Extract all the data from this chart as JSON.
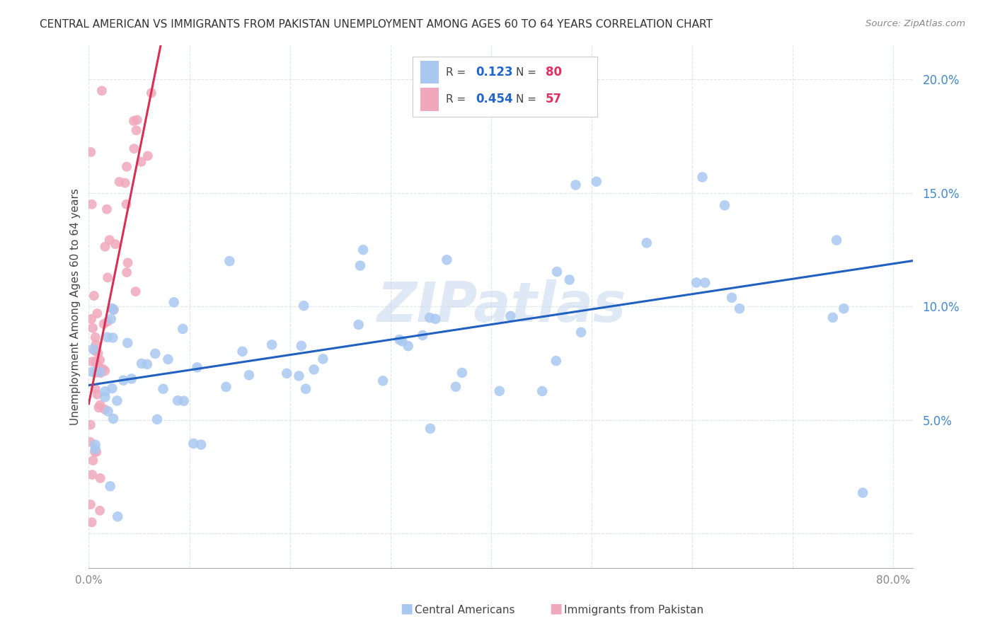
{
  "title": "CENTRAL AMERICAN VS IMMIGRANTS FROM PAKISTAN UNEMPLOYMENT AMONG AGES 60 TO 64 YEARS CORRELATION CHART",
  "source": "Source: ZipAtlas.com",
  "ylabel": "Unemployment Among Ages 60 to 64 years",
  "ytick_vals": [
    0.0,
    0.05,
    0.1,
    0.15,
    0.2
  ],
  "ytick_labels": [
    "",
    "5.0%",
    "10.0%",
    "15.0%",
    "20.0%"
  ],
  "xlim": [
    0.0,
    0.82
  ],
  "ylim": [
    -0.015,
    0.215
  ],
  "legend_blue_r": "0.123",
  "legend_blue_n": "80",
  "legend_pink_r": "0.454",
  "legend_pink_n": "57",
  "blue_color": "#a8c8f0",
  "pink_color": "#f0a8bc",
  "blue_line_color": "#2060c0",
  "pink_line_color": "#d83055",
  "pink_dash_color": "#c8a0b0",
  "watermark": "ZIPatlas",
  "grid_color": "#dde5f0",
  "background_color": "#ffffff",
  "blue_scatter_seed": 42,
  "pink_scatter_seed": 7
}
